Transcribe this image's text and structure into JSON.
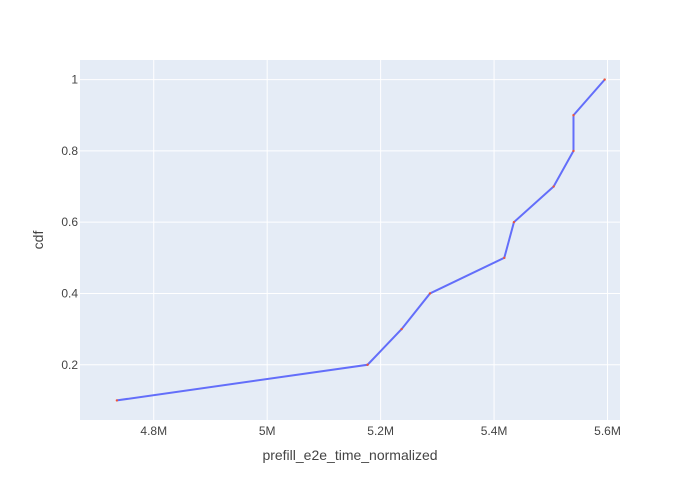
{
  "chart_data": {
    "type": "line",
    "xlabel": "prefill_e2e_time_normalized",
    "ylabel": "cdf",
    "x": [
      4735000,
      5177000,
      5237000,
      5287000,
      5418000,
      5435000,
      5505000,
      5540000,
      5540000,
      5595000
    ],
    "y": [
      0.1,
      0.2,
      0.3,
      0.4,
      0.5,
      0.6,
      0.7,
      0.8,
      0.9,
      1.0
    ],
    "xlim": [
      4670000,
      5622000
    ],
    "ylim": [
      0.045,
      1.055
    ],
    "xticks": [
      4800000,
      5000000,
      5200000,
      5400000,
      5600000
    ],
    "xtick_labels": [
      "4.8M",
      "5M",
      "5.2M",
      "5.4M",
      "5.6M"
    ],
    "yticks": [
      0.2,
      0.4,
      0.6,
      0.8,
      1
    ],
    "ytick_labels": [
      "0.2",
      "0.4",
      "0.6",
      "0.8",
      "1"
    ],
    "grid": true,
    "line_color": "#636efa",
    "marker_color": "#ef553b",
    "plot_bg": "#e5ecf6",
    "grid_color": "#ffffff"
  }
}
